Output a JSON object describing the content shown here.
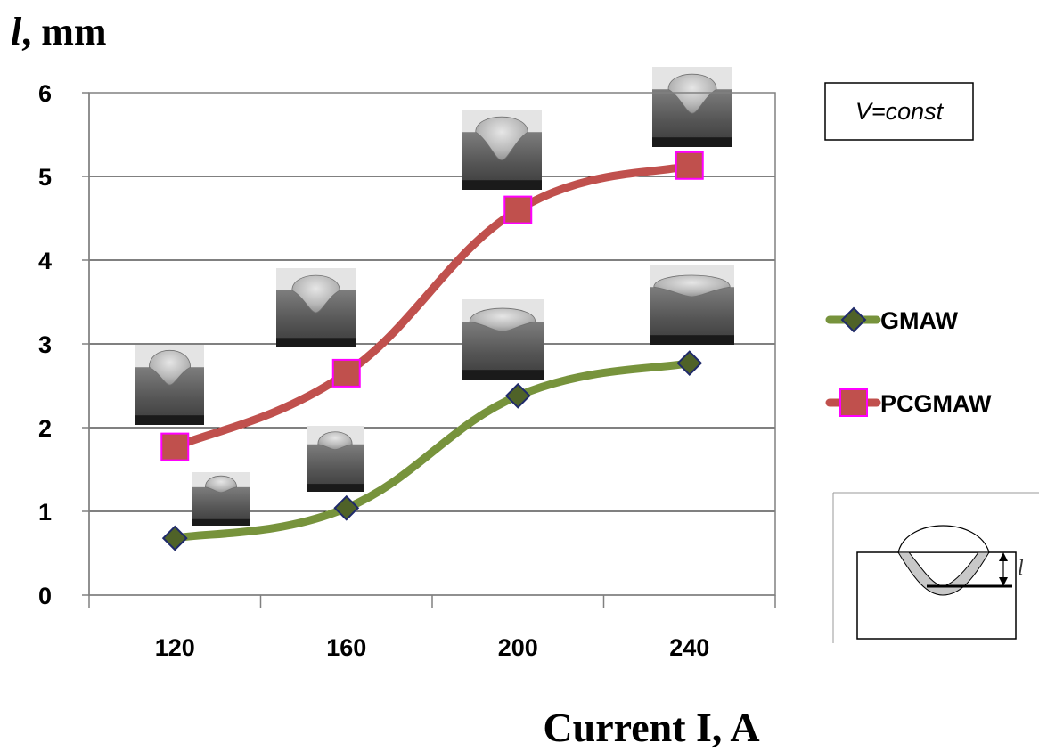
{
  "chart_data": {
    "type": "line",
    "ylabel_symbol": "l",
    "ylabel_unit": ", mm",
    "xlabel": "Current  I, A",
    "categories": [
      "120",
      "160",
      "200",
      "240"
    ],
    "ylim": [
      0,
      6
    ],
    "yticks": [
      "0",
      "1",
      "2",
      "3",
      "4",
      "5",
      "6"
    ],
    "grid": true,
    "legend_position": "right",
    "series": [
      {
        "name": "GMAW",
        "values": [
          0.68,
          1.04,
          2.38,
          2.77
        ],
        "color": "#77933c",
        "marker": "diamond",
        "marker_fill": "#4f6228",
        "marker_edge": "#1f2a6b"
      },
      {
        "name": "PCGMAW",
        "values": [
          1.77,
          2.65,
          4.6,
          5.13
        ],
        "color": "#c0504d",
        "marker": "square",
        "marker_fill": "#c0504d",
        "marker_edge": "#ff00ff"
      }
    ],
    "annotations": {
      "condition": "V=const",
      "diagram_label": "l"
    }
  }
}
